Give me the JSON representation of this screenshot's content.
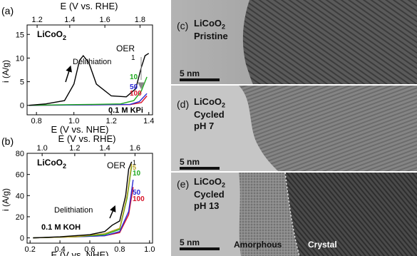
{
  "panel_a": {
    "letter": "(a)",
    "top_axis_label": "E (V vs. RHE)",
    "top_ticks": [
      "1.2",
      "1.4",
      "1.6",
      "1.8"
    ],
    "bottom_axis_label": "E (V vs. NHE)",
    "bottom_ticks": [
      "0.8",
      "1.0",
      "1.2",
      "1.4"
    ],
    "y_axis_label": "i (A/g)",
    "y_ticks": [
      "0",
      "5",
      "10",
      "15"
    ],
    "material": "LiCoO",
    "material_sub": "2",
    "delithiation": "Delithiation",
    "oer": "OER",
    "electrolyte": "0.1 M KPi",
    "cycle_labels": [
      "1",
      "10",
      "50",
      "100"
    ]
  },
  "panel_b": {
    "letter": "(b)",
    "top_axis_label": "E (V vs. RHE)",
    "top_ticks": [
      "1.0",
      "1.2",
      "1.4",
      "1.6"
    ],
    "bottom_axis_label": "E (V vs. NHE)",
    "bottom_ticks": [
      "0.2",
      "0.4",
      "0.6",
      "0.8",
      "1.0"
    ],
    "y_axis_label": "i (A/g)",
    "y_ticks": [
      "0",
      "20",
      "40",
      "60",
      "80"
    ],
    "material": "LiCoO",
    "material_sub": "2",
    "delithiation": "Delithiation",
    "oer": "OER",
    "electrolyte": "0.1 M KOH",
    "cycle_labels": [
      "1",
      "5",
      "10",
      "50",
      "100"
    ]
  },
  "panel_c": {
    "letter": "(c)",
    "line1": "LiCoO",
    "sub": "2",
    "line2": "Pristine",
    "scale": "5 nm"
  },
  "panel_d": {
    "letter": "(d)",
    "line1": "LiCoO",
    "sub": "2",
    "line2": "Cycled",
    "line3": "pH 7",
    "scale": "5 nm"
  },
  "panel_e": {
    "letter": "(e)",
    "line1": "LiCoO",
    "sub": "2",
    "line2": "Cycled",
    "line3": "pH 13",
    "scale": "5 nm",
    "amorphous": "Amorphous",
    "crystal": "Crystal"
  },
  "colors": {
    "cycle1": "#000000",
    "cycle10": "#1faa1f",
    "cycle50": "#2a2ad6",
    "cycle100": "#d8142a",
    "cycle5": "#b8a020"
  },
  "chart_data": [
    {
      "type": "line",
      "panel": "(a)",
      "xlabel": "E (V vs. NHE)",
      "ylabel": "i (A/g)",
      "xlim": [
        0.75,
        1.42
      ],
      "ylim": [
        -2,
        17
      ],
      "series": [
        {
          "name": "1",
          "x": [
            0.76,
            0.85,
            0.95,
            1.0,
            1.03,
            1.05,
            1.08,
            1.12,
            1.2,
            1.28,
            1.33,
            1.36,
            1.38,
            1.4
          ],
          "y": [
            0,
            0.3,
            1.0,
            4.5,
            9.5,
            10.5,
            9.0,
            4.5,
            2.0,
            1.8,
            3.5,
            8.0,
            10.5,
            11.0
          ]
        },
        {
          "name": "10",
          "x": [
            0.76,
            0.9,
            1.1,
            1.25,
            1.32,
            1.36,
            1.39
          ],
          "y": [
            0,
            0.1,
            0.2,
            0.3,
            1.0,
            3.0,
            6.0
          ]
        },
        {
          "name": "50",
          "x": [
            0.76,
            0.9,
            1.1,
            1.3,
            1.35,
            1.39
          ],
          "y": [
            0,
            0.05,
            0.1,
            0.2,
            0.8,
            2.5
          ]
        },
        {
          "name": "100",
          "x": [
            0.76,
            0.9,
            1.1,
            1.3,
            1.36,
            1.39
          ],
          "y": [
            0,
            0.05,
            0.1,
            0.15,
            0.6,
            2.0
          ]
        }
      ]
    },
    {
      "type": "line",
      "panel": "(b)",
      "xlabel": "E (V vs. NHE)",
      "ylabel": "i (A/g)",
      "xlim": [
        0.18,
        1.02
      ],
      "ylim": [
        -5,
        80
      ],
      "series": [
        {
          "name": "1",
          "x": [
            0.22,
            0.4,
            0.6,
            0.7,
            0.75,
            0.8,
            0.84,
            0.86,
            0.88
          ],
          "y": [
            0,
            1,
            3,
            6,
            12,
            16,
            40,
            65,
            72
          ]
        },
        {
          "name": "5",
          "x": [
            0.22,
            0.5,
            0.7,
            0.8,
            0.85,
            0.88
          ],
          "y": [
            0,
            1,
            4,
            9,
            40,
            70
          ]
        },
        {
          "name": "10",
          "x": [
            0.22,
            0.5,
            0.7,
            0.8,
            0.85,
            0.88
          ],
          "y": [
            0,
            1,
            3,
            8,
            38,
            68
          ]
        },
        {
          "name": "50",
          "x": [
            0.22,
            0.5,
            0.7,
            0.8,
            0.86,
            0.89
          ],
          "y": [
            0,
            1,
            2,
            6,
            25,
            55
          ]
        },
        {
          "name": "100",
          "x": [
            0.22,
            0.5,
            0.7,
            0.8,
            0.86,
            0.89
          ],
          "y": [
            0,
            1,
            2,
            5,
            22,
            48
          ]
        }
      ]
    }
  ]
}
